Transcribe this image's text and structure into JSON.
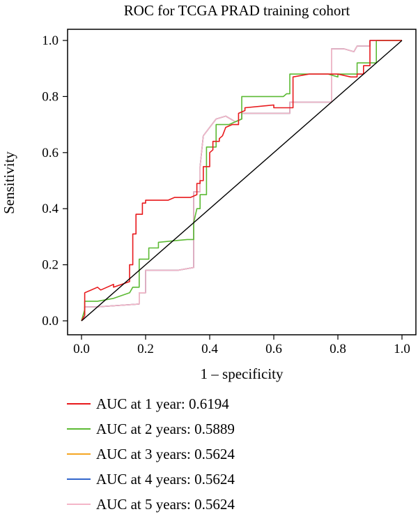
{
  "chart_data": {
    "type": "line",
    "title": "ROC for TCGA PRAD training cohort",
    "xlabel": "1 – specificity",
    "ylabel": "Sensitivity",
    "xlim": [
      0,
      1
    ],
    "ylim": [
      0,
      1
    ],
    "x_ticks": [
      "0.0",
      "0.2",
      "0.4",
      "0.6",
      "0.8",
      "1.0"
    ],
    "y_ticks": [
      "0.0",
      "0.2",
      "0.4",
      "0.6",
      "0.8",
      "1.0"
    ],
    "grid": false,
    "legend_position": "bottom",
    "reference_line": {
      "x": [
        0,
        1
      ],
      "y": [
        0,
        1
      ],
      "color": "#000000"
    },
    "series": [
      {
        "name": "AUC at 1 year: 0.6194",
        "color": "#e8191c",
        "x": [
          0,
          0.01,
          0.01,
          0.05,
          0.06,
          0.1,
          0.1,
          0.15,
          0.15,
          0.16,
          0.16,
          0.17,
          0.17,
          0.19,
          0.19,
          0.2,
          0.2,
          0.27,
          0.29,
          0.31,
          0.34,
          0.36,
          0.36,
          0.37,
          0.37,
          0.38,
          0.38,
          0.4,
          0.4,
          0.41,
          0.41,
          0.43,
          0.43,
          0.44,
          0.45,
          0.47,
          0.48,
          0.49,
          0.49,
          0.51,
          0.51,
          0.6,
          0.6,
          0.66,
          0.66,
          0.71,
          0.72,
          0.8,
          0.84,
          0.86,
          0.86,
          0.88,
          0.88,
          0.9,
          0.9,
          0.92,
          0.94,
          1.0
        ],
        "y": [
          0,
          0.02,
          0.1,
          0.12,
          0.11,
          0.13,
          0.12,
          0.14,
          0.2,
          0.2,
          0.31,
          0.31,
          0.38,
          0.38,
          0.42,
          0.42,
          0.43,
          0.43,
          0.44,
          0.44,
          0.44,
          0.45,
          0.49,
          0.49,
          0.5,
          0.5,
          0.55,
          0.55,
          0.6,
          0.61,
          0.64,
          0.64,
          0.65,
          0.66,
          0.69,
          0.7,
          0.7,
          0.7,
          0.74,
          0.75,
          0.76,
          0.77,
          0.76,
          0.76,
          0.87,
          0.88,
          0.88,
          0.88,
          0.87,
          0.87,
          0.88,
          0.88,
          0.91,
          0.91,
          1.0,
          1.0,
          1.0,
          1.0
        ]
      },
      {
        "name": "AUC at 2 years: 0.5889",
        "color": "#5cba34",
        "x": [
          0,
          0.01,
          0.01,
          0.05,
          0.1,
          0.15,
          0.16,
          0.18,
          0.18,
          0.21,
          0.21,
          0.24,
          0.24,
          0.33,
          0.35,
          0.35,
          0.36,
          0.37,
          0.37,
          0.39,
          0.39,
          0.42,
          0.42,
          0.45,
          0.46,
          0.48,
          0.5,
          0.5,
          0.53,
          0.6,
          0.63,
          0.64,
          0.65,
          0.65,
          0.68,
          0.77,
          0.8,
          0.8,
          0.86,
          0.86,
          0.92,
          0.92,
          1.0
        ],
        "y": [
          0,
          0.04,
          0.07,
          0.07,
          0.08,
          0.1,
          0.12,
          0.12,
          0.22,
          0.22,
          0.26,
          0.26,
          0.28,
          0.29,
          0.29,
          0.35,
          0.4,
          0.4,
          0.45,
          0.45,
          0.62,
          0.62,
          0.7,
          0.7,
          0.7,
          0.71,
          0.72,
          0.8,
          0.8,
          0.8,
          0.8,
          0.81,
          0.81,
          0.88,
          0.88,
          0.88,
          0.87,
          0.88,
          0.88,
          0.92,
          0.92,
          1.0,
          1.0
        ]
      },
      {
        "name": "AUC at 3 years: 0.5624",
        "color": "#f5a623",
        "x": [
          0,
          0.01,
          0.01,
          0.03,
          0.05,
          0.18,
          0.18,
          0.2,
          0.2,
          0.25,
          0.3,
          0.35,
          0.35,
          0.37,
          0.37,
          0.38,
          0.4,
          0.42,
          0.45,
          0.48,
          0.5,
          0.5,
          0.52,
          0.65,
          0.65,
          0.78,
          0.78,
          0.82,
          0.85,
          0.86,
          0.9,
          0.9,
          1.0
        ],
        "y": [
          0,
          0.01,
          0.05,
          0.05,
          0.05,
          0.06,
          0.1,
          0.1,
          0.18,
          0.18,
          0.18,
          0.19,
          0.46,
          0.46,
          0.55,
          0.66,
          0.69,
          0.72,
          0.73,
          0.71,
          0.72,
          0.74,
          0.74,
          0.74,
          0.78,
          0.78,
          0.97,
          0.97,
          0.96,
          0.98,
          0.98,
          1.0,
          1.0
        ]
      },
      {
        "name": "AUC at 4 years: 0.5624",
        "color": "#3366cc",
        "x": [
          0,
          0.01,
          0.01,
          0.03,
          0.05,
          0.18,
          0.18,
          0.2,
          0.2,
          0.25,
          0.3,
          0.35,
          0.35,
          0.37,
          0.37,
          0.38,
          0.4,
          0.42,
          0.45,
          0.48,
          0.5,
          0.5,
          0.52,
          0.65,
          0.65,
          0.78,
          0.78,
          0.82,
          0.85,
          0.86,
          0.9,
          0.9,
          1.0
        ],
        "y": [
          0,
          0.01,
          0.05,
          0.05,
          0.05,
          0.06,
          0.1,
          0.1,
          0.18,
          0.18,
          0.18,
          0.19,
          0.46,
          0.46,
          0.55,
          0.66,
          0.69,
          0.72,
          0.73,
          0.71,
          0.72,
          0.74,
          0.74,
          0.74,
          0.78,
          0.78,
          0.97,
          0.97,
          0.96,
          0.98,
          0.98,
          1.0,
          1.0
        ]
      },
      {
        "name": "AUC at 5 years: 0.5624",
        "color": "#f4b6c8",
        "x": [
          0,
          0.01,
          0.01,
          0.03,
          0.05,
          0.18,
          0.18,
          0.2,
          0.2,
          0.25,
          0.3,
          0.35,
          0.35,
          0.37,
          0.37,
          0.38,
          0.4,
          0.42,
          0.45,
          0.48,
          0.5,
          0.5,
          0.52,
          0.65,
          0.65,
          0.78,
          0.78,
          0.82,
          0.85,
          0.86,
          0.9,
          0.9,
          1.0
        ],
        "y": [
          0,
          0.01,
          0.05,
          0.05,
          0.05,
          0.06,
          0.1,
          0.1,
          0.18,
          0.18,
          0.18,
          0.19,
          0.46,
          0.46,
          0.55,
          0.66,
          0.69,
          0.72,
          0.73,
          0.71,
          0.72,
          0.74,
          0.74,
          0.74,
          0.78,
          0.78,
          0.97,
          0.97,
          0.96,
          0.98,
          0.98,
          1.0,
          1.0
        ]
      }
    ]
  }
}
